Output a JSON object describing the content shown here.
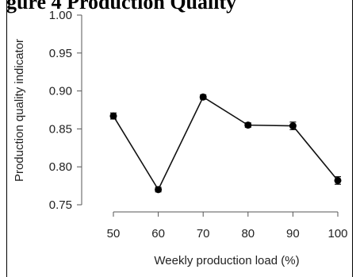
{
  "figure_title_fragment": "gure 4 Production Quality",
  "chart_data": {
    "type": "line",
    "title": "",
    "xlabel": "Weekly production load (%)",
    "ylabel": "Production quality indicator",
    "x": [
      50,
      60,
      70,
      80,
      90,
      100
    ],
    "xticks": [
      "50",
      "60",
      "70",
      "80",
      "90",
      "100"
    ],
    "yticks": [
      "1.00",
      "0.95",
      "0.90",
      "0.85",
      "0.80",
      "0.75"
    ],
    "ylim": [
      0.75,
      1.0
    ],
    "grid": false,
    "series": [
      {
        "values": [
          0.867,
          0.77,
          0.892,
          0.855,
          0.854,
          0.782
        ],
        "error": [
          0.004,
          0.003,
          0.003,
          0.003,
          0.005,
          0.005
        ]
      }
    ]
  }
}
